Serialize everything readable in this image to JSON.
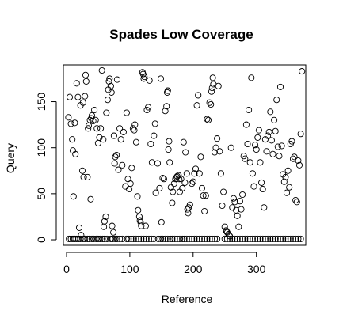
{
  "chart_data": {
    "type": "scatter",
    "title": "Spades Low Coverage",
    "xlabel": "Reference",
    "ylabel": "Query",
    "xlim": [
      -5,
      378
    ],
    "ylim": [
      -6,
      190
    ],
    "x_ticks": [
      0,
      100,
      200,
      300
    ],
    "y_ticks": [
      0,
      50,
      100,
      150
    ],
    "grid": false,
    "legend": "none",
    "marker": "open-circle",
    "points": [
      [
        4,
        1
      ],
      [
        7,
        1
      ],
      [
        10,
        1
      ],
      [
        13,
        1
      ],
      [
        16,
        1
      ],
      [
        19,
        1
      ],
      [
        22,
        1
      ],
      [
        26,
        1
      ],
      [
        29,
        1
      ],
      [
        33,
        1
      ],
      [
        36,
        1
      ],
      [
        40,
        1
      ],
      [
        43,
        1
      ],
      [
        47,
        1
      ],
      [
        50,
        1
      ],
      [
        53,
        1
      ],
      [
        57,
        1
      ],
      [
        60,
        1
      ],
      [
        64,
        1
      ],
      [
        70,
        1
      ],
      [
        73,
        1
      ],
      [
        77,
        1
      ],
      [
        80,
        1
      ],
      [
        84,
        1
      ],
      [
        88,
        1
      ],
      [
        95,
        1
      ],
      [
        98,
        1
      ],
      [
        102,
        1
      ],
      [
        106,
        1
      ],
      [
        110,
        1
      ],
      [
        114,
        1
      ],
      [
        118,
        1
      ],
      [
        122,
        1
      ],
      [
        126,
        1
      ],
      [
        130,
        1
      ],
      [
        134,
        1
      ],
      [
        138,
        1
      ],
      [
        145,
        1
      ],
      [
        149,
        1
      ],
      [
        152,
        1
      ],
      [
        156,
        1
      ],
      [
        160,
        1
      ],
      [
        164,
        1
      ],
      [
        167,
        1
      ],
      [
        171,
        1
      ],
      [
        175,
        1
      ],
      [
        179,
        1
      ],
      [
        183,
        1
      ],
      [
        186,
        1
      ],
      [
        190,
        1
      ],
      [
        194,
        1
      ],
      [
        198,
        1
      ],
      [
        202,
        1
      ],
      [
        206,
        1
      ],
      [
        210,
        1
      ],
      [
        214,
        1
      ],
      [
        218,
        1
      ],
      [
        222,
        1
      ],
      [
        226,
        1
      ],
      [
        230,
        1
      ],
      [
        234,
        1
      ],
      [
        238,
        1
      ],
      [
        250,
        1
      ],
      [
        254,
        1
      ],
      [
        258,
        1
      ],
      [
        262,
        1
      ],
      [
        266,
        1
      ],
      [
        270,
        1
      ],
      [
        274,
        1
      ],
      [
        278,
        1
      ],
      [
        282,
        1
      ],
      [
        286,
        1
      ],
      [
        290,
        1
      ],
      [
        294,
        1
      ],
      [
        298,
        1
      ],
      [
        302,
        1
      ],
      [
        306,
        1
      ],
      [
        310,
        1
      ],
      [
        314,
        1
      ],
      [
        318,
        1
      ],
      [
        322,
        1
      ],
      [
        326,
        1
      ],
      [
        330,
        1
      ],
      [
        334,
        1
      ],
      [
        338,
        1
      ],
      [
        342,
        1
      ],
      [
        346,
        1
      ],
      [
        350,
        1
      ],
      [
        354,
        1
      ],
      [
        358,
        1
      ],
      [
        362,
        1
      ],
      [
        366,
        1
      ],
      [
        370,
        1
      ],
      [
        3,
        133
      ],
      [
        5,
        155
      ],
      [
        7,
        126
      ],
      [
        9,
        109
      ],
      [
        10,
        97
      ],
      [
        11,
        47
      ],
      [
        13,
        127
      ],
      [
        14,
        93
      ],
      [
        16,
        170
      ],
      [
        18,
        155
      ],
      [
        20,
        13
      ],
      [
        22,
        146
      ],
      [
        23,
        5
      ],
      [
        25,
        75
      ],
      [
        26,
        149
      ],
      [
        27,
        68
      ],
      [
        29,
        156
      ],
      [
        30,
        179
      ],
      [
        31,
        172
      ],
      [
        33,
        68
      ],
      [
        34,
        121
      ],
      [
        35,
        124
      ],
      [
        37,
        130
      ],
      [
        38,
        44
      ],
      [
        39,
        132
      ],
      [
        40,
        135
      ],
      [
        42,
        129
      ],
      [
        44,
        141
      ],
      [
        46,
        130
      ],
      [
        48,
        121
      ],
      [
        50,
        105
      ],
      [
        52,
        111
      ],
      [
        54,
        121
      ],
      [
        56,
        184
      ],
      [
        58,
        109
      ],
      [
        59,
        14
      ],
      [
        60,
        20
      ],
      [
        62,
        25
      ],
      [
        63,
        138
      ],
      [
        65,
        152
      ],
      [
        66,
        163
      ],
      [
        67,
        172
      ],
      [
        68,
        175
      ],
      [
        70,
        167
      ],
      [
        71,
        160
      ],
      [
        72,
        15
      ],
      [
        74,
        8
      ],
      [
        75,
        113
      ],
      [
        76,
        83
      ],
      [
        77,
        90
      ],
      [
        79,
        92
      ],
      [
        80,
        174
      ],
      [
        82,
        76
      ],
      [
        84,
        121
      ],
      [
        86,
        109
      ],
      [
        88,
        81
      ],
      [
        90,
        117
      ],
      [
        93,
        58
      ],
      [
        95,
        138
      ],
      [
        97,
        66
      ],
      [
        99,
        55
      ],
      [
        101,
        61
      ],
      [
        103,
        78
      ],
      [
        105,
        121
      ],
      [
        107,
        119
      ],
      [
        108,
        125
      ],
      [
        110,
        106
      ],
      [
        112,
        47
      ],
      [
        113,
        32
      ],
      [
        115,
        25
      ],
      [
        116,
        21
      ],
      [
        117,
        19
      ],
      [
        118,
        15
      ],
      [
        120,
        182
      ],
      [
        121,
        180
      ],
      [
        122,
        175
      ],
      [
        123,
        177
      ],
      [
        125,
        15
      ],
      [
        127,
        141
      ],
      [
        129,
        144
      ],
      [
        131,
        173
      ],
      [
        133,
        104
      ],
      [
        135,
        84
      ],
      [
        138,
        113
      ],
      [
        140,
        126
      ],
      [
        141,
        51
      ],
      [
        144,
        83
      ],
      [
        147,
        56
      ],
      [
        149,
        175
      ],
      [
        150,
        19
      ],
      [
        152,
        67
      ],
      [
        154,
        66
      ],
      [
        156,
        140
      ],
      [
        158,
        145
      ],
      [
        159,
        160
      ],
      [
        160,
        162
      ],
      [
        161,
        98
      ],
      [
        162,
        107
      ],
      [
        163,
        84
      ],
      [
        165,
        57
      ],
      [
        167,
        40
      ],
      [
        168,
        52
      ],
      [
        170,
        61
      ],
      [
        172,
        66
      ],
      [
        174,
        68
      ],
      [
        175,
        69
      ],
      [
        177,
        70
      ],
      [
        178,
        66
      ],
      [
        179,
        52
      ],
      [
        181,
        66
      ],
      [
        183,
        56
      ],
      [
        185,
        106
      ],
      [
        187,
        62
      ],
      [
        188,
        95
      ],
      [
        190,
        72
      ],
      [
        191,
        33
      ],
      [
        192,
        29
      ],
      [
        193,
        35
      ],
      [
        195,
        38
      ],
      [
        198,
        61
      ],
      [
        200,
        63
      ],
      [
        202,
        72
      ],
      [
        204,
        77
      ],
      [
        206,
        146
      ],
      [
        208,
        157
      ],
      [
        210,
        72
      ],
      [
        212,
        90
      ],
      [
        214,
        56
      ],
      [
        216,
        48
      ],
      [
        218,
        31
      ],
      [
        220,
        48
      ],
      [
        222,
        131
      ],
      [
        224,
        130
      ],
      [
        226,
        149
      ],
      [
        228,
        147
      ],
      [
        229,
        161
      ],
      [
        230,
        165
      ],
      [
        231,
        176
      ],
      [
        232,
        169
      ],
      [
        234,
        95
      ],
      [
        236,
        100
      ],
      [
        238,
        110
      ],
      [
        240,
        167
      ],
      [
        242,
        96
      ],
      [
        244,
        72
      ],
      [
        246,
        37
      ],
      [
        248,
        52
      ],
      [
        250,
        14
      ],
      [
        252,
        10
      ],
      [
        253,
        9
      ],
      [
        254,
        8
      ],
      [
        256,
        6
      ],
      [
        258,
        4
      ],
      [
        260,
        100
      ],
      [
        262,
        35
      ],
      [
        264,
        45
      ],
      [
        266,
        41
      ],
      [
        268,
        32
      ],
      [
        270,
        26
      ],
      [
        272,
        14
      ],
      [
        274,
        42
      ],
      [
        276,
        33
      ],
      [
        278,
        49
      ],
      [
        280,
        91
      ],
      [
        282,
        88
      ],
      [
        284,
        125
      ],
      [
        286,
        104
      ],
      [
        288,
        141
      ],
      [
        290,
        84
      ],
      [
        292,
        176
      ],
      [
        294,
        72
      ],
      [
        296,
        58
      ],
      [
        298,
        103
      ],
      [
        300,
        98
      ],
      [
        302,
        111
      ],
      [
        304,
        119
      ],
      [
        306,
        84
      ],
      [
        308,
        62
      ],
      [
        310,
        55
      ],
      [
        312,
        35
      ],
      [
        314,
        109
      ],
      [
        316,
        96
      ],
      [
        318,
        113
      ],
      [
        320,
        117
      ],
      [
        322,
        139
      ],
      [
        324,
        108
      ],
      [
        326,
        93
      ],
      [
        328,
        130
      ],
      [
        330,
        118
      ],
      [
        332,
        152
      ],
      [
        334,
        101
      ],
      [
        336,
        91
      ],
      [
        338,
        166
      ],
      [
        340,
        102
      ],
      [
        342,
        71
      ],
      [
        344,
        63
      ],
      [
        346,
        68
      ],
      [
        348,
        51
      ],
      [
        350,
        75
      ],
      [
        352,
        57
      ],
      [
        354,
        104
      ],
      [
        356,
        107
      ],
      [
        358,
        88
      ],
      [
        360,
        90
      ],
      [
        362,
        43
      ],
      [
        364,
        41
      ],
      [
        366,
        86
      ],
      [
        368,
        81
      ],
      [
        370,
        115
      ],
      [
        372,
        183
      ]
    ]
  }
}
